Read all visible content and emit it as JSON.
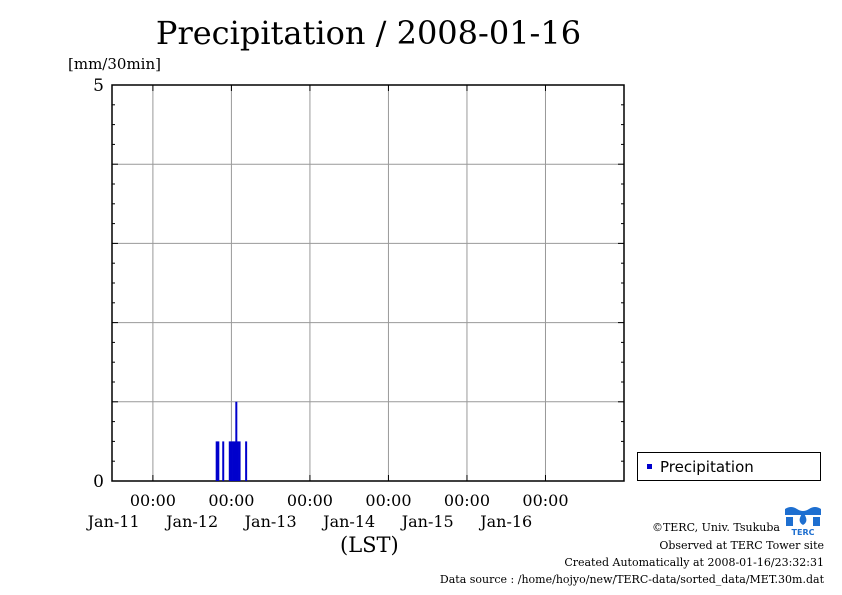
{
  "chart_data": {
    "type": "bar",
    "title": "Precipitation / 2008-01-16",
    "ylabel": "[mm/30min]",
    "xlabel": "(LST)",
    "ylim": [
      0,
      5
    ],
    "yticks": [
      "0",
      "5"
    ],
    "xlim": [
      "2008-01-10T11:30",
      "2008-01-16T24:00"
    ],
    "xticks": [
      {
        "time": "00:00",
        "date": "Jan-11",
        "at": "2008-01-11T00:00"
      },
      {
        "time": "00:00",
        "date": "Jan-12",
        "at": "2008-01-12T00:00"
      },
      {
        "time": "00:00",
        "date": "Jan-13",
        "at": "2008-01-13T00:00"
      },
      {
        "time": "00:00",
        "date": "Jan-14",
        "at": "2008-01-14T00:00"
      },
      {
        "time": "00:00",
        "date": "Jan-15",
        "at": "2008-01-15T00:00"
      },
      {
        "time": "00:00",
        "date": "Jan-16",
        "at": "2008-01-16T00:00"
      }
    ],
    "grid": true,
    "legend_position": "right",
    "series": [
      {
        "name": "Precipitation",
        "color": "#0000cc",
        "points": [
          {
            "t": "2008-01-11T19:30",
            "v": 0.5
          },
          {
            "t": "2008-01-11T20:00",
            "v": 0.5
          },
          {
            "t": "2008-01-11T21:30",
            "v": 0.5
          },
          {
            "t": "2008-01-11T23:30",
            "v": 0.5
          },
          {
            "t": "2008-01-12T00:00",
            "v": 0.5
          },
          {
            "t": "2008-01-12T00:30",
            "v": 0.5
          },
          {
            "t": "2008-01-12T01:00",
            "v": 0.5
          },
          {
            "t": "2008-01-12T01:30",
            "v": 1.0
          },
          {
            "t": "2008-01-12T02:00",
            "v": 0.5
          },
          {
            "t": "2008-01-12T02:30",
            "v": 0.5
          },
          {
            "t": "2008-01-12T04:30",
            "v": 0.5
          }
        ]
      }
    ]
  },
  "credits": {
    "copyright": "©TERC, Univ. Tsukuba",
    "site": "Observed at TERC Tower site",
    "created": "Created Automatically at 2008-01-16/23:32:31",
    "source": "Data source : /home/hojyo/new/TERC-data/sorted_data/MET.30m.dat"
  },
  "logo": {
    "text": "TERC",
    "color": "#1e6fd0"
  }
}
